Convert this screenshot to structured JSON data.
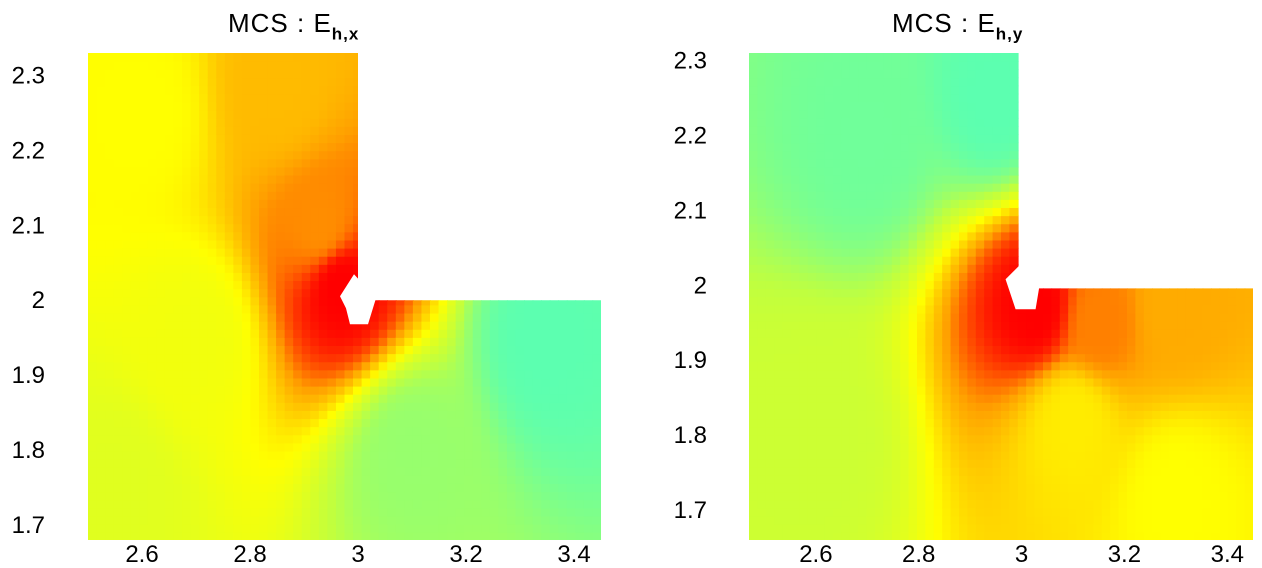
{
  "chart_data": [
    {
      "type": "heatmap",
      "title_main": "MCS : E",
      "title_sub": "h,x",
      "xticks": [
        2.6,
        2.8,
        3,
        3.2,
        3.4
      ],
      "xtick_labels": [
        "2.6",
        "2.8",
        "3",
        "3.2",
        "3.4"
      ],
      "yticks": [
        1.7,
        1.8,
        1.9,
        2,
        2.1,
        2.2,
        2.3
      ],
      "ytick_labels": [
        "1.7",
        "1.8",
        "1.9",
        "2",
        "2.1",
        "2.2",
        "2.3"
      ],
      "xlim": [
        2.5,
        3.45
      ],
      "ylim": [
        1.68,
        2.33
      ],
      "domain": "L-shaped region: x in [2.5, 3.45], y in [1.68, 2.0] plus x in [2.5, 3.0], y in [2.0, 2.33]",
      "re_entrant_corner": [
        3.0,
        2.0
      ],
      "colormap": [
        "#5cffb0",
        "#bfff40",
        "#ffff00",
        "#ffa000",
        "#ff0000"
      ],
      "color_regions": [
        {
          "x": 2.97,
          "y": 2.02,
          "level": 1.0
        },
        {
          "x": 2.93,
          "y": 2.1,
          "level": 0.78
        },
        {
          "x": 2.85,
          "y": 2.28,
          "level": 0.68
        },
        {
          "x": 2.6,
          "y": 2.25,
          "level": 0.5
        },
        {
          "x": 2.7,
          "y": 1.95,
          "level": 0.45
        },
        {
          "x": 2.55,
          "y": 1.75,
          "level": 0.38
        },
        {
          "x": 3.1,
          "y": 1.8,
          "level": 0.15
        },
        {
          "x": 3.35,
          "y": 1.95,
          "level": 0.0
        }
      ]
    },
    {
      "type": "heatmap",
      "title_main": "MCS : E",
      "title_sub": "h,y",
      "xticks": [
        2.6,
        2.8,
        3,
        3.2,
        3.4
      ],
      "xtick_labels": [
        "2.6",
        "2.8",
        "3",
        "3.2",
        "3.4"
      ],
      "yticks": [
        1.7,
        1.8,
        1.9,
        2,
        2.1,
        2.2,
        2.3
      ],
      "ytick_labels": [
        "1.7",
        "1.8",
        "1.9",
        "2",
        "2.1",
        "2.2",
        "2.3"
      ],
      "xlim": [
        2.47,
        3.45
      ],
      "ylim": [
        1.66,
        2.31
      ],
      "domain": "L-shaped region: x in [2.47, 3.45], y in [1.66, 2.0] plus x in [2.47, 3.0], y in [2.0, 2.31]",
      "re_entrant_corner": [
        3.0,
        2.0
      ],
      "colormap": [
        "#5cffb0",
        "#bfff40",
        "#ffff00",
        "#ffa000",
        "#ff0000"
      ],
      "color_regions": [
        {
          "x": 3.03,
          "y": 1.97,
          "level": 1.0
        },
        {
          "x": 3.15,
          "y": 1.95,
          "level": 0.8
        },
        {
          "x": 3.3,
          "y": 1.97,
          "level": 0.72
        },
        {
          "x": 3.1,
          "y": 1.82,
          "level": 0.55
        },
        {
          "x": 3.3,
          "y": 1.72,
          "level": 0.5
        },
        {
          "x": 2.6,
          "y": 1.8,
          "level": 0.3
        },
        {
          "x": 2.7,
          "y": 2.2,
          "level": 0.05
        },
        {
          "x": 2.95,
          "y": 2.25,
          "level": 0.0
        }
      ]
    }
  ]
}
